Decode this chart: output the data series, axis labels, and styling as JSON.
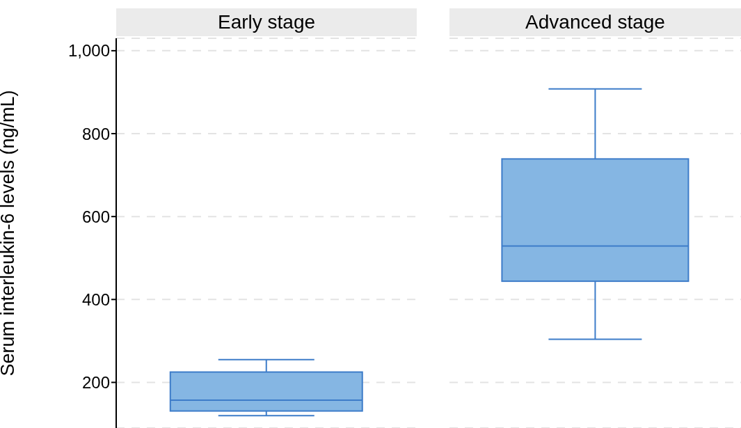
{
  "chart_data": {
    "type": "box",
    "categories": [
      "Early stage",
      "Advanced stage"
    ],
    "ylabel": "Serum interleukin-6 levels (ng/mL)",
    "ylim": [
      90,
      1030
    ],
    "yticks": [
      200,
      400,
      600,
      800,
      {
        "value": 1000,
        "label": "1,000"
      }
    ],
    "grid": "y",
    "color": "#85b6e3",
    "boxes": [
      {
        "low": 120,
        "q1": 131,
        "median": 157,
        "q3": 225,
        "high": 255
      },
      {
        "low": 304,
        "q1": 444,
        "median": 529,
        "q3": 739,
        "high": 908
      }
    ]
  }
}
